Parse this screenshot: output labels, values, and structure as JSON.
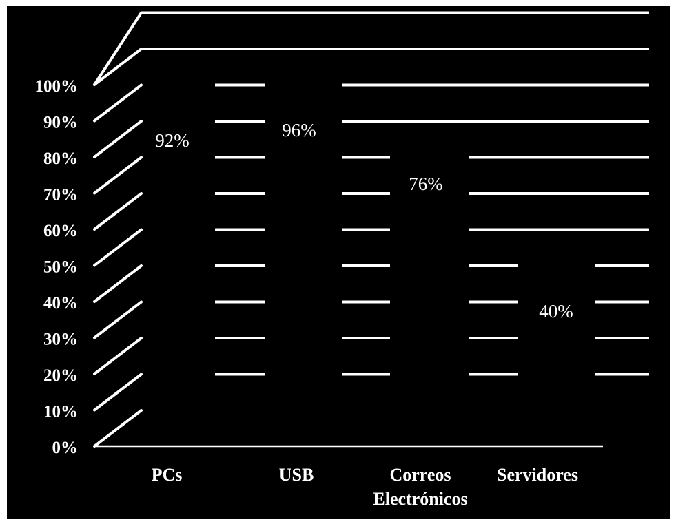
{
  "chart_data": {
    "type": "bar",
    "title": "",
    "xlabel": "",
    "ylabel": "",
    "categories": [
      [
        "PCs"
      ],
      [
        "USB"
      ],
      [
        "Correos",
        "Electrónicos"
      ],
      [
        "Servidores"
      ]
    ],
    "values": [
      92,
      96,
      76,
      40
    ],
    "data_labels": [
      "92%",
      "96%",
      "76%",
      "40%"
    ],
    "ylim": [
      0,
      100
    ],
    "y_ticks": [
      "0%",
      "10%",
      "20%",
      "30%",
      "40%",
      "50%",
      "60%",
      "70%",
      "80%",
      "90%",
      "100%"
    ],
    "grid": true,
    "style": "3d-perspective",
    "colors": {
      "background": "#000000",
      "bars": "#000000",
      "lines": "#ffffff",
      "text": "#ffffff"
    }
  }
}
